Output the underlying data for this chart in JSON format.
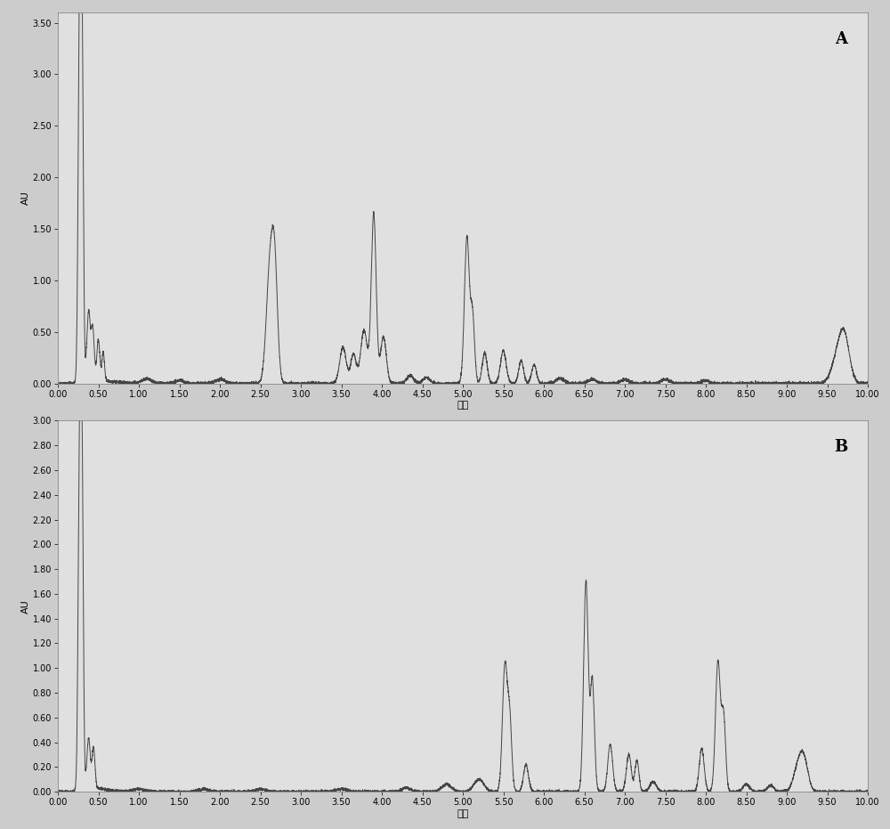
{
  "background_color": "#cccccc",
  "plot_bg_color": "#e0e0e0",
  "line_color": "#444444",
  "line_width": 0.7,
  "xlabel": "分钟",
  "ylabel": "AU",
  "label_A": "A",
  "label_B": "B",
  "panel_A": {
    "xlim": [
      0.0,
      10.0
    ],
    "ylim": [
      0.0,
      3.6
    ],
    "yticks": [
      0.0,
      0.5,
      1.0,
      1.5,
      2.0,
      2.5,
      3.0,
      3.5
    ],
    "xticks": [
      0.0,
      0.5,
      1.0,
      1.5,
      2.0,
      2.5,
      3.0,
      3.5,
      4.0,
      4.5,
      5.0,
      5.5,
      6.0,
      6.5,
      7.0,
      7.5,
      8.0,
      8.5,
      9.0,
      9.5,
      10.0
    ]
  },
  "panel_B": {
    "xlim": [
      0.0,
      10.0
    ],
    "ylim": [
      0.0,
      3.0
    ],
    "yticks": [
      0.0,
      0.2,
      0.4,
      0.6,
      0.8,
      1.0,
      1.2,
      1.4,
      1.6,
      1.8,
      2.0,
      2.2,
      2.4,
      2.6,
      2.8,
      3.0
    ],
    "xticks": [
      0.0,
      0.5,
      1.0,
      1.5,
      2.0,
      2.5,
      3.0,
      3.5,
      4.0,
      4.5,
      5.0,
      5.5,
      6.0,
      6.5,
      7.0,
      7.5,
      8.0,
      8.5,
      9.0,
      9.5,
      10.0
    ]
  }
}
